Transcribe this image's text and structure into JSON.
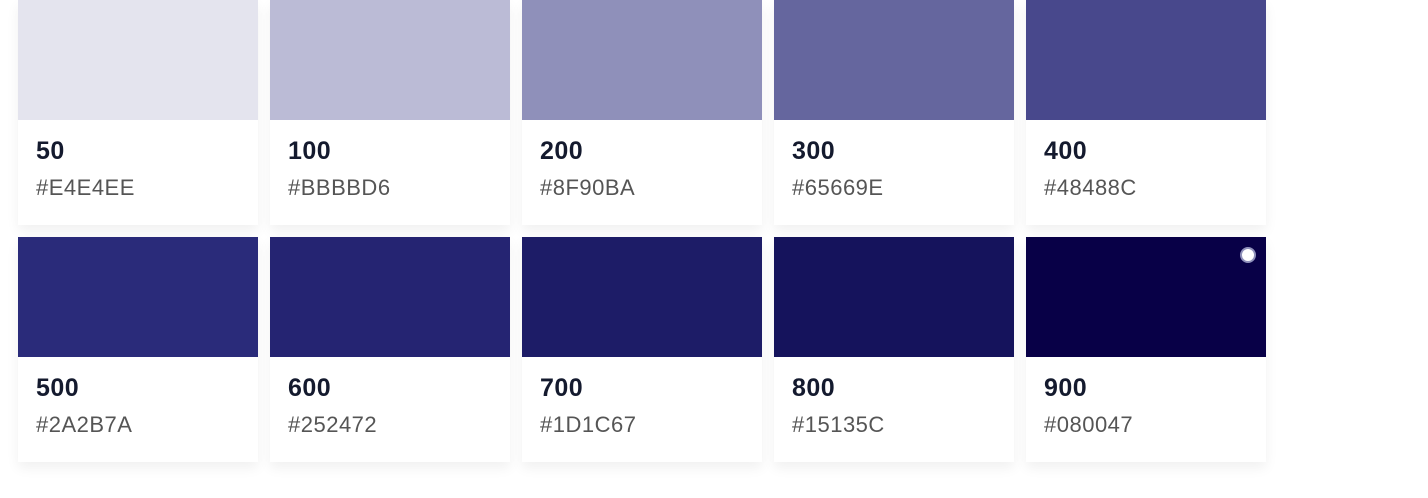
{
  "swatches": [
    {
      "name": "50",
      "hex": "#E4E4EE",
      "color": "#E4E4EE"
    },
    {
      "name": "100",
      "hex": "#BBBBD6",
      "color": "#BBBBD6"
    },
    {
      "name": "200",
      "hex": "#8F90BA",
      "color": "#8F90BA"
    },
    {
      "name": "300",
      "hex": "#65669E",
      "color": "#65669E"
    },
    {
      "name": "400",
      "hex": "#48488C",
      "color": "#48488C"
    },
    {
      "name": "500",
      "hex": "#2A2B7A",
      "color": "#2A2B7A"
    },
    {
      "name": "600",
      "hex": "#252472",
      "color": "#252472"
    },
    {
      "name": "700",
      "hex": "#1D1C67",
      "color": "#1D1C67"
    },
    {
      "name": "800",
      "hex": "#15135C",
      "color": "#15135C"
    },
    {
      "name": "900",
      "hex": "#080047",
      "color": "#080047",
      "selected": true
    }
  ]
}
